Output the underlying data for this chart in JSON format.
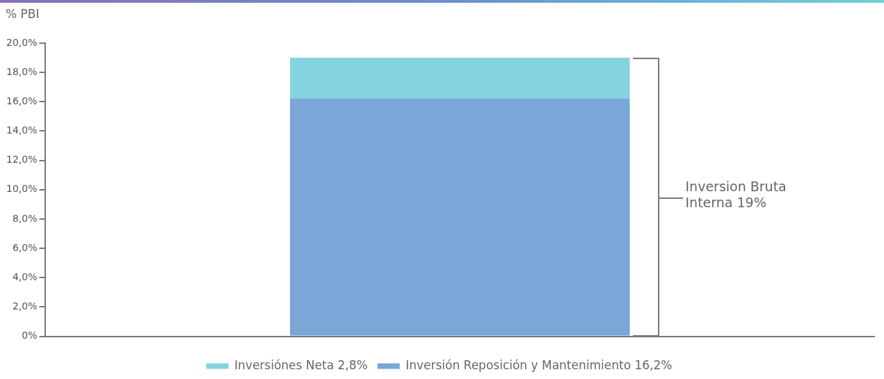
{
  "chart_data": {
    "type": "bar",
    "ylabel": "% PBI",
    "categories": [
      null
    ],
    "stacked": true,
    "series": [
      {
        "name": "Inversión Reposición y Mantenimiento 16,2%",
        "color": "#7aa7d8",
        "values": [
          16.2
        ]
      },
      {
        "name": "Inversiónes Neta 2,8%",
        "color": "#86d3e0",
        "values": [
          2.8
        ]
      }
    ],
    "ylim": [
      0,
      20
    ],
    "yticks": [
      {
        "value": 0,
        "label": "0%"
      },
      {
        "value": 2,
        "label": "2,0%"
      },
      {
        "value": 4,
        "label": "4,0%"
      },
      {
        "value": 6,
        "label": "6,0%"
      },
      {
        "value": 8,
        "label": "8,0%"
      },
      {
        "value": 10,
        "label": "10,0%"
      },
      {
        "value": 12,
        "label": "12,0%"
      },
      {
        "value": 14,
        "label": "14,0%"
      },
      {
        "value": 16,
        "label": "16,0%"
      },
      {
        "value": 18,
        "label": "18,0%"
      },
      {
        "value": 20,
        "label": "20,0%"
      }
    ],
    "grid": false,
    "legend": "bottom",
    "annotations": [
      "Inversion Bruta Interna 19%"
    ]
  }
}
